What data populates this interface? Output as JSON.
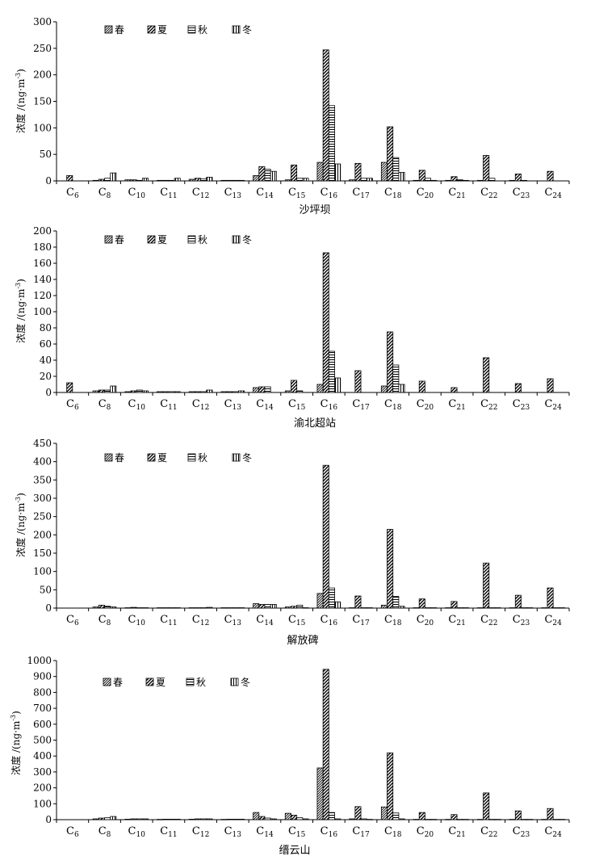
{
  "chart_data": [
    {
      "type": "bar",
      "title": "沙坪坝",
      "ylabel": "浓度 /(ng·m",
      "ylabel_sup": "-3",
      "ylabel_tail": ")",
      "ylim": [
        0,
        300
      ],
      "yticks": [
        0,
        50,
        100,
        150,
        200,
        250,
        300
      ],
      "categories": [
        "C6",
        "C8",
        "C10",
        "C11",
        "C12",
        "C13",
        "C14",
        "C15",
        "C16",
        "C17",
        "C18",
        "C20",
        "C21",
        "C22",
        "C23",
        "C24"
      ],
      "series": [
        {
          "name": "春",
          "values": [
            0,
            1,
            2,
            1,
            3,
            1,
            10,
            2,
            35,
            2,
            35,
            1,
            1,
            1,
            1,
            0
          ]
        },
        {
          "name": "夏",
          "values": [
            10,
            3,
            2,
            1,
            5,
            1,
            27,
            30,
            247,
            33,
            102,
            20,
            8,
            48,
            13,
            18
          ]
        },
        {
          "name": "秋",
          "values": [
            0,
            5,
            1,
            1,
            4,
            1,
            22,
            5,
            142,
            5,
            44,
            5,
            2,
            5,
            1,
            0
          ]
        },
        {
          "name": "冬",
          "values": [
            0,
            15,
            5,
            5,
            7,
            1,
            18,
            5,
            32,
            5,
            16,
            1,
            1,
            0,
            0,
            0
          ]
        }
      ],
      "legend": "top-left",
      "grid": false
    },
    {
      "type": "bar",
      "title": "渝北超站",
      "ylabel": "浓度 /(ng·m",
      "ylabel_sup": "-3",
      "ylabel_tail": ")",
      "ylim": [
        0,
        200
      ],
      "yticks": [
        0,
        20,
        40,
        60,
        80,
        100,
        120,
        140,
        160,
        180,
        200
      ],
      "categories": [
        "C6",
        "C8",
        "C10",
        "C11",
        "C12",
        "C13",
        "C14",
        "C15",
        "C16",
        "C17",
        "C18",
        "C20",
        "C21",
        "C22",
        "C23",
        "C24"
      ],
      "series": [
        {
          "name": "春",
          "values": [
            0,
            2,
            1,
            1,
            1,
            1,
            6,
            2,
            10,
            0,
            8,
            0,
            0,
            0,
            0,
            0
          ]
        },
        {
          "name": "夏",
          "values": [
            12,
            3,
            2,
            1,
            1,
            1,
            7,
            15,
            173,
            27,
            75,
            14,
            6,
            43,
            11,
            17
          ]
        },
        {
          "name": "秋",
          "values": [
            0,
            3,
            3,
            1,
            1,
            1,
            7,
            2,
            51,
            0,
            34,
            0,
            0,
            0,
            0,
            0
          ]
        },
        {
          "name": "冬",
          "values": [
            0,
            8,
            2,
            1,
            3,
            2,
            0,
            0,
            18,
            0,
            10,
            0,
            0,
            0,
            0,
            0
          ]
        }
      ],
      "legend": "top-left",
      "grid": false
    },
    {
      "type": "bar",
      "title": "解放碑",
      "ylabel": "浓度 /(ng·m",
      "ylabel_sup": "-3",
      "ylabel_tail": ")",
      "ylim": [
        0,
        450
      ],
      "yticks": [
        0,
        50,
        100,
        150,
        200,
        250,
        300,
        350,
        400,
        450
      ],
      "categories": [
        "C6",
        "C8",
        "C10",
        "C11",
        "C12",
        "C13",
        "C14",
        "C15",
        "C16",
        "C17",
        "C18",
        "C20",
        "C21",
        "C22",
        "C23",
        "C24"
      ],
      "series": [
        {
          "name": "春",
          "values": [
            0,
            3,
            1,
            1,
            1,
            1,
            12,
            3,
            40,
            1,
            8,
            1,
            1,
            1,
            1,
            1
          ]
        },
        {
          "name": "夏",
          "values": [
            0,
            8,
            2,
            1,
            1,
            1,
            10,
            5,
            390,
            33,
            215,
            25,
            18,
            123,
            35,
            55
          ]
        },
        {
          "name": "秋",
          "values": [
            0,
            5,
            1,
            1,
            1,
            1,
            10,
            8,
            55,
            1,
            32,
            1,
            1,
            1,
            1,
            1
          ]
        },
        {
          "name": "冬",
          "values": [
            0,
            3,
            1,
            1,
            2,
            1,
            10,
            1,
            17,
            1,
            5,
            1,
            1,
            1,
            1,
            1
          ]
        }
      ],
      "legend": "top-left",
      "grid": false
    },
    {
      "type": "bar",
      "title": "缙云山",
      "ylabel": "浓度 /(ng·m",
      "ylabel_sup": "-3",
      "ylabel_tail": ")",
      "ylim": [
        0,
        1000
      ],
      "yticks": [
        0,
        100,
        200,
        300,
        400,
        500,
        600,
        700,
        800,
        900,
        1000
      ],
      "categories": [
        "C6",
        "C8",
        "C10",
        "C11",
        "C12",
        "C13",
        "C14",
        "C15",
        "C16",
        "C17",
        "C18",
        "C20",
        "C21",
        "C22",
        "C23",
        "C24"
      ],
      "series": [
        {
          "name": "春",
          "values": [
            0,
            5,
            3,
            2,
            3,
            2,
            45,
            40,
            325,
            5,
            80,
            2,
            2,
            2,
            2,
            2
          ]
        },
        {
          "name": "夏",
          "values": [
            0,
            10,
            5,
            3,
            5,
            3,
            20,
            28,
            945,
            82,
            420,
            45,
            32,
            168,
            55,
            70
          ]
        },
        {
          "name": "秋",
          "values": [
            0,
            12,
            5,
            3,
            5,
            3,
            10,
            12,
            45,
            5,
            42,
            2,
            2,
            2,
            2,
            2
          ]
        },
        {
          "name": "冬",
          "values": [
            0,
            20,
            5,
            3,
            5,
            3,
            5,
            5,
            5,
            2,
            5,
            2,
            2,
            2,
            2,
            2
          ]
        }
      ],
      "legend": "top-left",
      "grid": false
    }
  ]
}
